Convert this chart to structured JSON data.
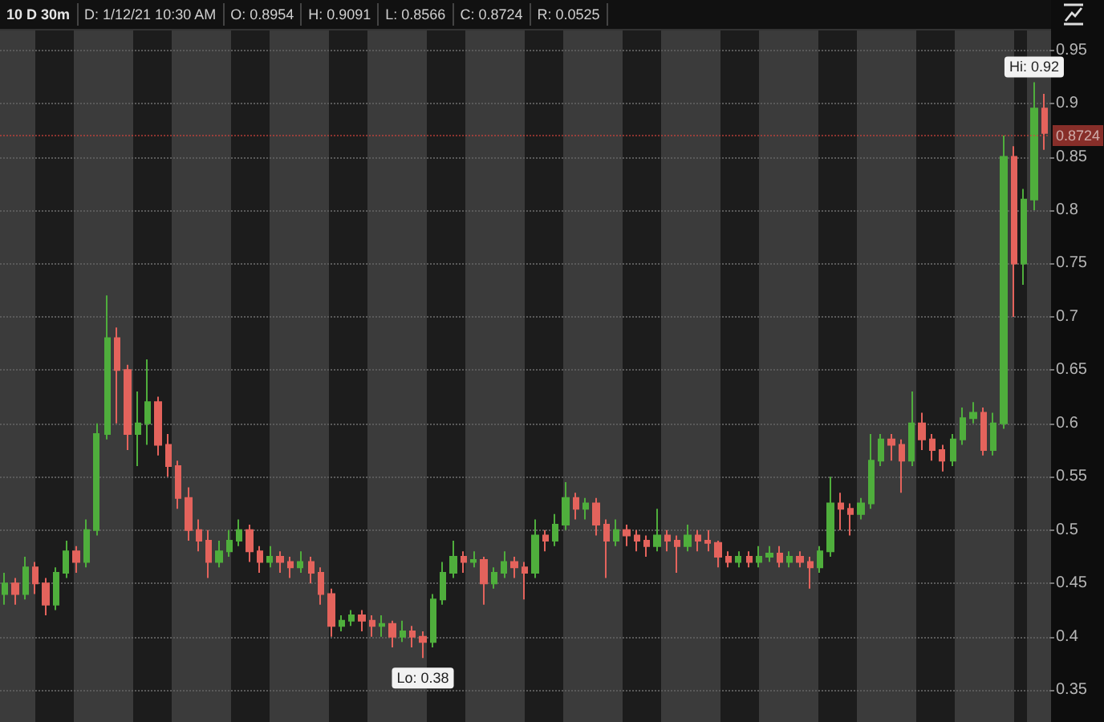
{
  "chart_data": {
    "type": "candlestick",
    "title": "10 D 30m",
    "annotations": [
      "D: 1/12/21 10:30 AM",
      "O: 0.8954",
      "H: 0.9091",
      "L: 0.8566",
      "C: 0.8724",
      "R: 0.0525",
      {
        "text": "Hi: 0.92",
        "y": 0.92
      },
      {
        "text": "Lo: 0.38",
        "y": 0.38
      }
    ],
    "ref_lines": [
      {
        "axis": "y",
        "value": 0.8724,
        "label": "0.8724",
        "color": "#d9443c",
        "line_style": "dotted"
      }
    ],
    "categories": [
      null,
      null,
      null,
      null,
      null,
      null,
      null,
      null,
      null,
      null,
      null,
      null,
      null,
      null,
      null,
      null,
      null,
      null,
      null,
      null,
      null,
      null,
      null,
      null,
      null,
      null,
      null,
      null,
      null,
      null,
      null,
      null,
      null,
      null,
      null,
      null,
      null,
      null,
      null,
      null,
      null,
      null,
      null,
      null,
      null,
      null,
      null,
      null,
      null,
      null,
      null,
      null,
      null,
      null,
      null,
      null,
      null,
      null,
      null,
      null,
      null,
      null,
      null,
      null,
      null,
      null,
      null,
      null,
      null,
      null,
      null,
      null,
      null,
      null,
      null,
      null,
      null,
      null,
      null,
      null,
      null,
      null,
      null,
      null,
      null,
      null,
      null,
      null,
      null,
      null,
      null,
      null,
      null,
      null,
      null,
      null,
      null,
      null,
      null,
      null,
      null,
      null,
      null
    ],
    "ohlc": [
      [
        0.44,
        0.46,
        0.43,
        0.45
      ],
      [
        0.45,
        0.455,
        0.43,
        0.44
      ],
      [
        0.44,
        0.475,
        0.435,
        0.465
      ],
      [
        0.465,
        0.47,
        0.44,
        0.45
      ],
      [
        0.45,
        0.455,
        0.42,
        0.43
      ],
      [
        0.43,
        0.465,
        0.425,
        0.46
      ],
      [
        0.46,
        0.49,
        0.455,
        0.48
      ],
      [
        0.48,
        0.485,
        0.46,
        0.47
      ],
      [
        0.47,
        0.51,
        0.465,
        0.5
      ],
      [
        0.5,
        0.6,
        0.495,
        0.59
      ],
      [
        0.59,
        0.72,
        0.585,
        0.68
      ],
      [
        0.68,
        0.69,
        0.6,
        0.65
      ],
      [
        0.65,
        0.655,
        0.575,
        0.59
      ],
      [
        0.59,
        0.63,
        0.56,
        0.6
      ],
      [
        0.6,
        0.66,
        0.58,
        0.62
      ],
      [
        0.62,
        0.625,
        0.57,
        0.58
      ],
      [
        0.58,
        0.59,
        0.55,
        0.56
      ],
      [
        0.56,
        0.565,
        0.52,
        0.53
      ],
      [
        0.53,
        0.54,
        0.49,
        0.5
      ],
      [
        0.5,
        0.51,
        0.48,
        0.49
      ],
      [
        0.49,
        0.5,
        0.455,
        0.47
      ],
      [
        0.47,
        0.49,
        0.465,
        0.48
      ],
      [
        0.48,
        0.5,
        0.475,
        0.49
      ],
      [
        0.49,
        0.51,
        0.485,
        0.5
      ],
      [
        0.5,
        0.505,
        0.47,
        0.48
      ],
      [
        0.48,
        0.485,
        0.46,
        0.47
      ],
      [
        0.47,
        0.485,
        0.465,
        0.475
      ],
      [
        0.475,
        0.48,
        0.46,
        0.47
      ],
      [
        0.47,
        0.475,
        0.455,
        0.465
      ],
      [
        0.465,
        0.48,
        0.46,
        0.47
      ],
      [
        0.47,
        0.475,
        0.45,
        0.46
      ],
      [
        0.46,
        0.465,
        0.43,
        0.44
      ],
      [
        0.44,
        0.445,
        0.4,
        0.41
      ],
      [
        0.41,
        0.42,
        0.405,
        0.415
      ],
      [
        0.415,
        0.425,
        0.41,
        0.42
      ],
      [
        0.42,
        0.425,
        0.405,
        0.415
      ],
      [
        0.415,
        0.42,
        0.4,
        0.41
      ],
      [
        0.41,
        0.42,
        0.4,
        0.412
      ],
      [
        0.412,
        0.415,
        0.39,
        0.4
      ],
      [
        0.4,
        0.415,
        0.395,
        0.405
      ],
      [
        0.405,
        0.41,
        0.39,
        0.4
      ],
      [
        0.4,
        0.405,
        0.38,
        0.395
      ],
      [
        0.395,
        0.44,
        0.39,
        0.435
      ],
      [
        0.435,
        0.47,
        0.43,
        0.46
      ],
      [
        0.46,
        0.49,
        0.455,
        0.475
      ],
      [
        0.475,
        0.48,
        0.46,
        0.47
      ],
      [
        0.47,
        0.48,
        0.465,
        0.472
      ],
      [
        0.472,
        0.475,
        0.43,
        0.45
      ],
      [
        0.45,
        0.465,
        0.445,
        0.46
      ],
      [
        0.46,
        0.48,
        0.455,
        0.47
      ],
      [
        0.47,
        0.475,
        0.455,
        0.465
      ],
      [
        0.465,
        0.47,
        0.435,
        0.46
      ],
      [
        0.46,
        0.51,
        0.455,
        0.495
      ],
      [
        0.495,
        0.5,
        0.48,
        0.49
      ],
      [
        0.49,
        0.515,
        0.485,
        0.505
      ],
      [
        0.505,
        0.545,
        0.5,
        0.53
      ],
      [
        0.53,
        0.535,
        0.51,
        0.52
      ],
      [
        0.52,
        0.53,
        0.51,
        0.525
      ],
      [
        0.525,
        0.53,
        0.495,
        0.505
      ],
      [
        0.505,
        0.51,
        0.455,
        0.49
      ],
      [
        0.49,
        0.51,
        0.485,
        0.5
      ],
      [
        0.5,
        0.505,
        0.485,
        0.495
      ],
      [
        0.495,
        0.5,
        0.48,
        0.49
      ],
      [
        0.49,
        0.495,
        0.475,
        0.485
      ],
      [
        0.485,
        0.52,
        0.48,
        0.495
      ],
      [
        0.495,
        0.5,
        0.48,
        0.49
      ],
      [
        0.49,
        0.495,
        0.46,
        0.485
      ],
      [
        0.485,
        0.505,
        0.48,
        0.495
      ],
      [
        0.495,
        0.5,
        0.48,
        0.49
      ],
      [
        0.49,
        0.5,
        0.48,
        0.488
      ],
      [
        0.488,
        0.49,
        0.465,
        0.475
      ],
      [
        0.475,
        0.48,
        0.465,
        0.47
      ],
      [
        0.47,
        0.48,
        0.465,
        0.475
      ],
      [
        0.475,
        0.48,
        0.465,
        0.47
      ],
      [
        0.47,
        0.485,
        0.465,
        0.475
      ],
      [
        0.475,
        0.485,
        0.47,
        0.478
      ],
      [
        0.478,
        0.485,
        0.465,
        0.47
      ],
      [
        0.47,
        0.48,
        0.465,
        0.475
      ],
      [
        0.475,
        0.48,
        0.465,
        0.47
      ],
      [
        0.47,
        0.475,
        0.445,
        0.465
      ],
      [
        0.465,
        0.485,
        0.46,
        0.48
      ],
      [
        0.48,
        0.55,
        0.475,
        0.525
      ],
      [
        0.525,
        0.535,
        0.5,
        0.52
      ],
      [
        0.52,
        0.525,
        0.495,
        0.515
      ],
      [
        0.515,
        0.53,
        0.51,
        0.525
      ],
      [
        0.525,
        0.59,
        0.52,
        0.565
      ],
      [
        0.565,
        0.59,
        0.56,
        0.585
      ],
      [
        0.585,
        0.59,
        0.565,
        0.58
      ],
      [
        0.58,
        0.585,
        0.535,
        0.565
      ],
      [
        0.565,
        0.63,
        0.56,
        0.6
      ],
      [
        0.6,
        0.61,
        0.575,
        0.585
      ],
      [
        0.585,
        0.59,
        0.565,
        0.575
      ],
      [
        0.575,
        0.58,
        0.555,
        0.565
      ],
      [
        0.565,
        0.59,
        0.56,
        0.585
      ],
      [
        0.585,
        0.615,
        0.58,
        0.605
      ],
      [
        0.605,
        0.62,
        0.6,
        0.61
      ],
      [
        0.61,
        0.615,
        0.57,
        0.575
      ],
      [
        0.575,
        0.61,
        0.57,
        0.6
      ],
      [
        0.6,
        0.87,
        0.595,
        0.85
      ],
      [
        0.85,
        0.86,
        0.7,
        0.75
      ],
      [
        0.75,
        0.82,
        0.73,
        0.81
      ],
      [
        0.81,
        0.92,
        0.8,
        0.8954
      ],
      [
        0.8954,
        0.9091,
        0.8566,
        0.8724
      ]
    ],
    "ylim": [
      0.32,
      0.97
    ],
    "yticks": [
      0.35,
      0.4,
      0.45,
      0.5,
      0.55,
      0.6,
      0.65,
      0.7,
      0.75,
      0.8,
      0.85,
      0.9,
      0.95
    ],
    "grid": "y",
    "tick_labels": "y"
  }
}
